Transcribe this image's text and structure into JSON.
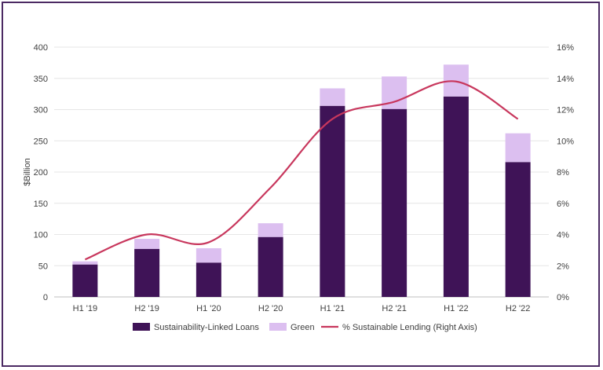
{
  "chart_data": {
    "type": "bar",
    "categories": [
      "H1 '19",
      "H2 '19",
      "H1 '20",
      "H2 '20",
      "H1 '21",
      "H2 '21",
      "H1 '22",
      "H2 '22"
    ],
    "series": [
      {
        "name": "Sustainability-Linked Loans",
        "type": "stacked-bar",
        "axis": "left",
        "color": "#3f1357",
        "values": [
          52,
          77,
          55,
          96,
          306,
          301,
          321,
          216
        ]
      },
      {
        "name": "Green",
        "type": "stacked-bar",
        "axis": "left",
        "color": "#dcbff0",
        "values": [
          5,
          16,
          23,
          22,
          28,
          52,
          51,
          46
        ]
      },
      {
        "name": "% Sustainable Lending (Right Axis)",
        "type": "line",
        "axis": "right",
        "color": "#c8375d",
        "values": [
          2.4,
          4.0,
          3.5,
          7.0,
          11.4,
          12.5,
          13.8,
          11.4
        ]
      }
    ],
    "ylabel": "$Billion",
    "ylim": [
      0,
      400
    ],
    "yticks": [
      "0",
      "50",
      "100",
      "150",
      "200",
      "250",
      "300",
      "350",
      "400"
    ],
    "y2lim": [
      0,
      16
    ],
    "y2ticks": [
      "0%",
      "2%",
      "4%",
      "6%",
      "8%",
      "10%",
      "12%",
      "14%",
      "16%"
    ],
    "grid": true,
    "legend": "bottom",
    "stacked": true
  }
}
